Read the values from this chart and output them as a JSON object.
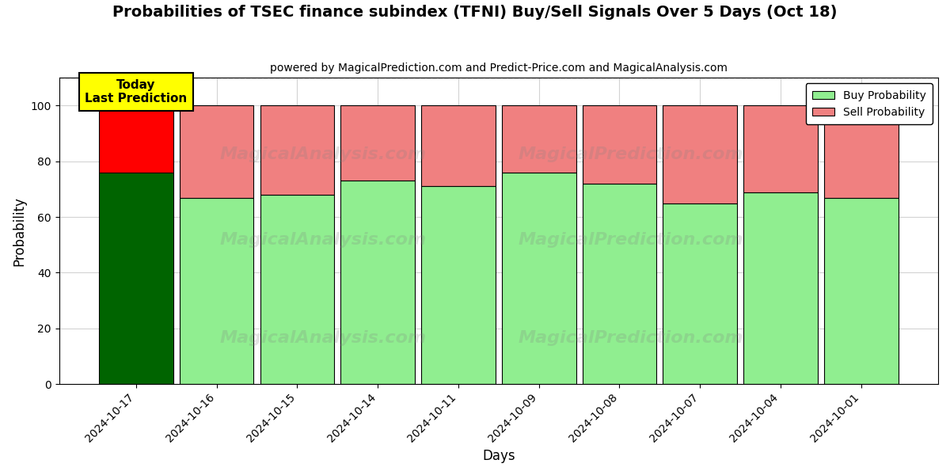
{
  "title": "Probabilities of TSEC finance subindex (TFNI) Buy/Sell Signals Over 5 Days (Oct 18)",
  "subtitle": "powered by MagicalPrediction.com and Predict-Price.com and MagicalAnalysis.com",
  "xlabel": "Days",
  "ylabel": "Probability",
  "categories": [
    "2024-10-17",
    "2024-10-16",
    "2024-10-15",
    "2024-10-14",
    "2024-10-11",
    "2024-10-09",
    "2024-10-08",
    "2024-10-07",
    "2024-10-04",
    "2024-10-01"
  ],
  "buy_values": [
    76,
    67,
    68,
    73,
    71,
    76,
    72,
    65,
    69,
    67
  ],
  "sell_values": [
    24,
    33,
    32,
    27,
    29,
    24,
    28,
    35,
    31,
    33
  ],
  "today_buy_color": "#006400",
  "today_sell_color": "#FF0000",
  "buy_color": "#90EE90",
  "sell_color": "#F08080",
  "bar_edgecolor": "#000000",
  "today_label_bg": "#FFFF00",
  "today_label_text": "Today\nLast Prediction",
  "legend_buy": "Buy Probability",
  "legend_sell": "Sell Probability",
  "ylim": [
    0,
    110
  ],
  "yticks": [
    0,
    20,
    40,
    60,
    80,
    100
  ],
  "watermark_left": "MagicalAnalysis.com",
  "watermark_right": "MagicalPrediction.com",
  "dashed_line_y": 110,
  "bar_width": 0.92
}
